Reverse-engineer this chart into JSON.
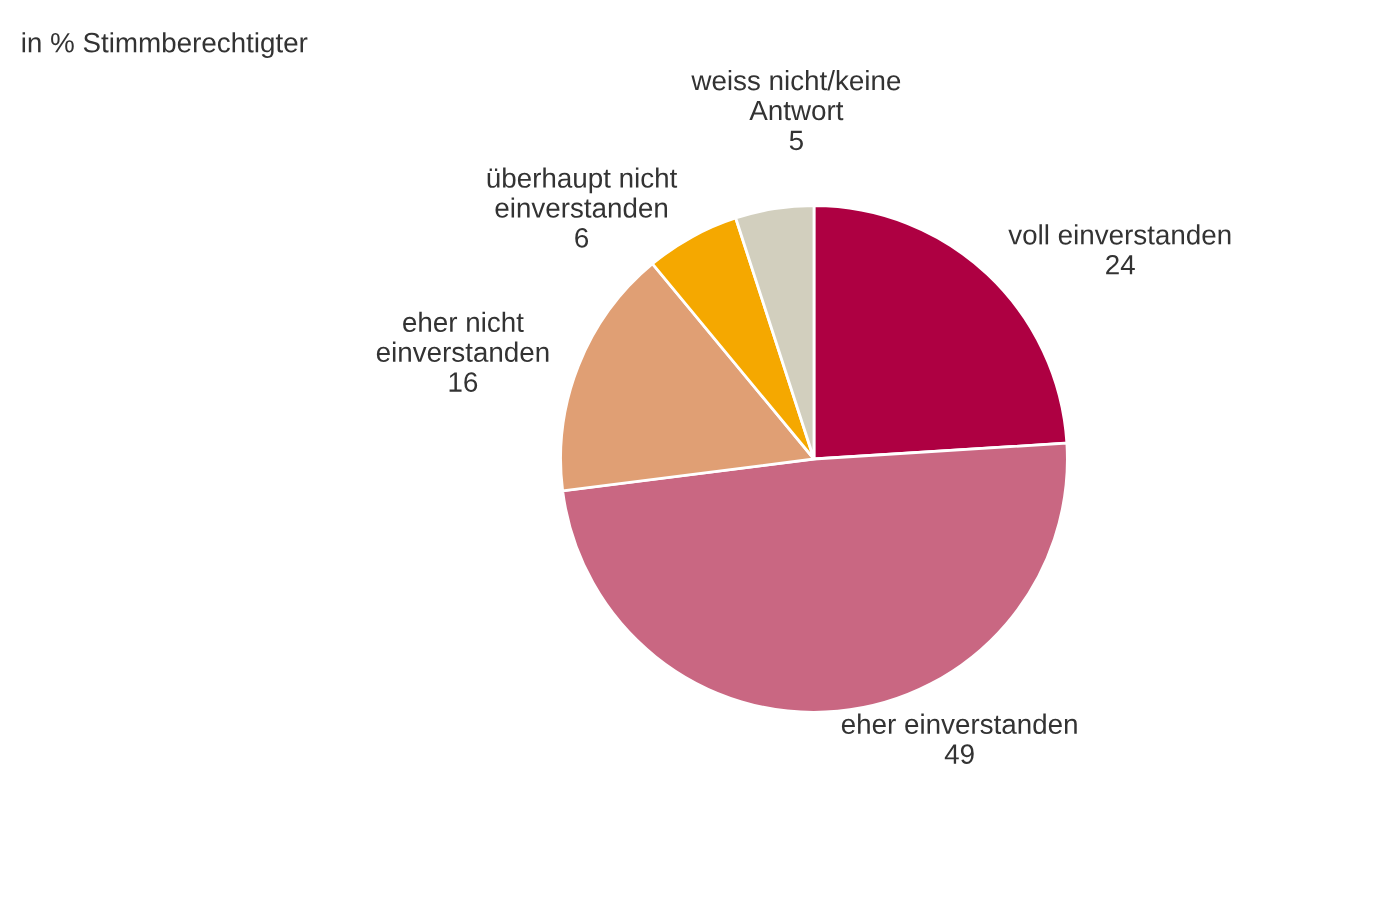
{
  "chart_data": {
    "type": "pie",
    "title": "in % Stimmberechtigter",
    "categories": [
      "voll einverstanden",
      "eher einverstanden",
      "eher nicht\neinverstanden",
      "überhaupt nicht\neinverstanden",
      "weiss nicht/keine\nAntwort"
    ],
    "values": [
      24,
      49,
      16,
      6,
      5
    ],
    "colors": [
      "#ae0042",
      "#c96782",
      "#e09f74",
      "#f5a800",
      "#d2cfbe"
    ],
    "data_labels": true,
    "legend": false
  }
}
